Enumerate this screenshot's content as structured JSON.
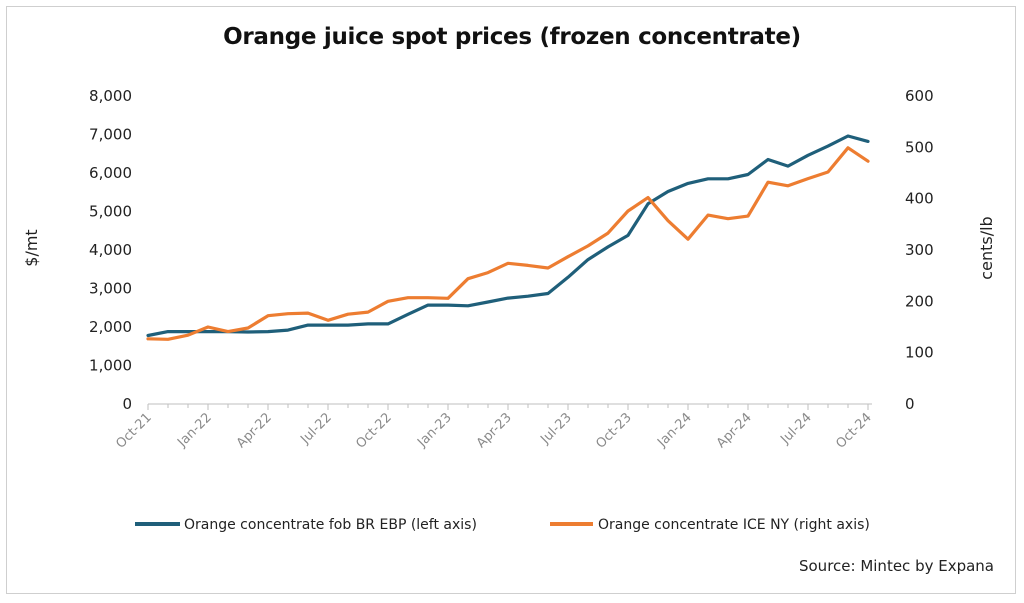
{
  "chart_data": {
    "type": "line",
    "title": "Orange juice spot prices (frozen concentrate)",
    "source": "Source: Mintec by Expana",
    "ylabel_left": "$/mt",
    "ylabel_right": "cents/lb",
    "ylim_left": [
      0,
      8000
    ],
    "ylim_right": [
      0,
      600
    ],
    "yticks_left": [
      "8,000",
      "7,000",
      "6,000",
      "5,000",
      "4,000",
      "3,000",
      "2,000",
      "1,000",
      "0"
    ],
    "yticks_right": [
      "600",
      "500",
      "400",
      "300",
      "200",
      "100",
      "0"
    ],
    "x_tick_labels": [
      "Oct-21",
      "Jan-22",
      "Apr-22",
      "Jul-22",
      "Oct-22",
      "Jan-23",
      "Apr-23",
      "Jul-23",
      "Oct-23",
      "Jan-24",
      "Apr-24",
      "Jul-24",
      "Oct-24"
    ],
    "x": [
      "Oct-21",
      "Nov-21",
      "Dec-21",
      "Jan-22",
      "Feb-22",
      "Mar-22",
      "Apr-22",
      "May-22",
      "Jun-22",
      "Jul-22",
      "Aug-22",
      "Sep-22",
      "Oct-22",
      "Nov-22",
      "Dec-22",
      "Jan-23",
      "Feb-23",
      "Mar-23",
      "Apr-23",
      "May-23",
      "Jun-23",
      "Jul-23",
      "Aug-23",
      "Sep-23",
      "Oct-23",
      "Nov-23",
      "Dec-23",
      "Jan-24",
      "Feb-24",
      "Mar-24",
      "Apr-24",
      "May-24",
      "Jun-24",
      "Jul-24",
      "Aug-24",
      "Sep-24",
      "Oct-24"
    ],
    "series": [
      {
        "name": "Orange concentrate fob BR EBP (left axis)",
        "axis": "left",
        "color": "#1f5f7a",
        "values": [
          1780,
          1880,
          1880,
          1880,
          1880,
          1870,
          1880,
          1920,
          2050,
          2050,
          2050,
          2080,
          2080,
          2330,
          2570,
          2570,
          2550,
          2650,
          2750,
          2800,
          2870,
          3290,
          3750,
          4080,
          4380,
          5200,
          5520,
          5730,
          5850,
          5850,
          5960,
          6350,
          6180,
          6460,
          6700,
          6960,
          6820
        ]
      },
      {
        "name": "Orange concentrate ICE NY (right axis)",
        "axis": "right",
        "color": "#ed7d31",
        "values": [
          127,
          126,
          134,
          150,
          141,
          148,
          172,
          176,
          177,
          163,
          175,
          179,
          200,
          207,
          207,
          206,
          244,
          256,
          274,
          270,
          265,
          287,
          308,
          333,
          376,
          402,
          357,
          321,
          368,
          361,
          366,
          432,
          425,
          439,
          452,
          499,
          473
        ]
      }
    ],
    "legend_position": "bottom",
    "grid": false
  }
}
